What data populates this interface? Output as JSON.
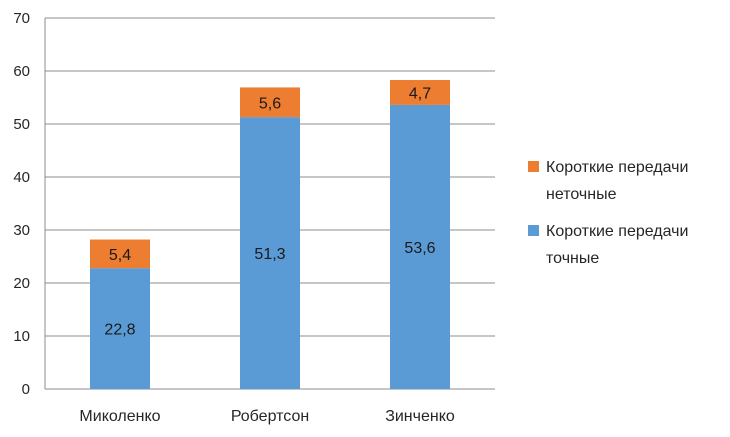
{
  "chart_data": {
    "type": "bar",
    "stacked": true,
    "categories": [
      "Миколенко",
      "Робертсон",
      "Зинченко"
    ],
    "series": [
      {
        "name": "Короткие передачи точные",
        "values": [
          22.8,
          51.3,
          53.6
        ],
        "labels": [
          "22,8",
          "51,3",
          "53,6"
        ],
        "color": "#5b9bd5"
      },
      {
        "name": "Короткие передачи неточные",
        "values": [
          5.4,
          5.6,
          4.7
        ],
        "labels": [
          "5,4",
          "5,6",
          "4,7"
        ],
        "color": "#ed7d31"
      }
    ],
    "ylim": [
      0,
      70
    ],
    "yticks": [
      0,
      10,
      20,
      30,
      40,
      50,
      60,
      70
    ],
    "grid": true,
    "legend": {
      "position": "right",
      "entries": [
        {
          "lines": [
            "Короткие передачи",
            "неточные"
          ],
          "series": 1
        },
        {
          "lines": [
            "Короткие передачи",
            "точные"
          ],
          "series": 0
        }
      ]
    },
    "title": "",
    "xlabel": "",
    "ylabel": ""
  }
}
